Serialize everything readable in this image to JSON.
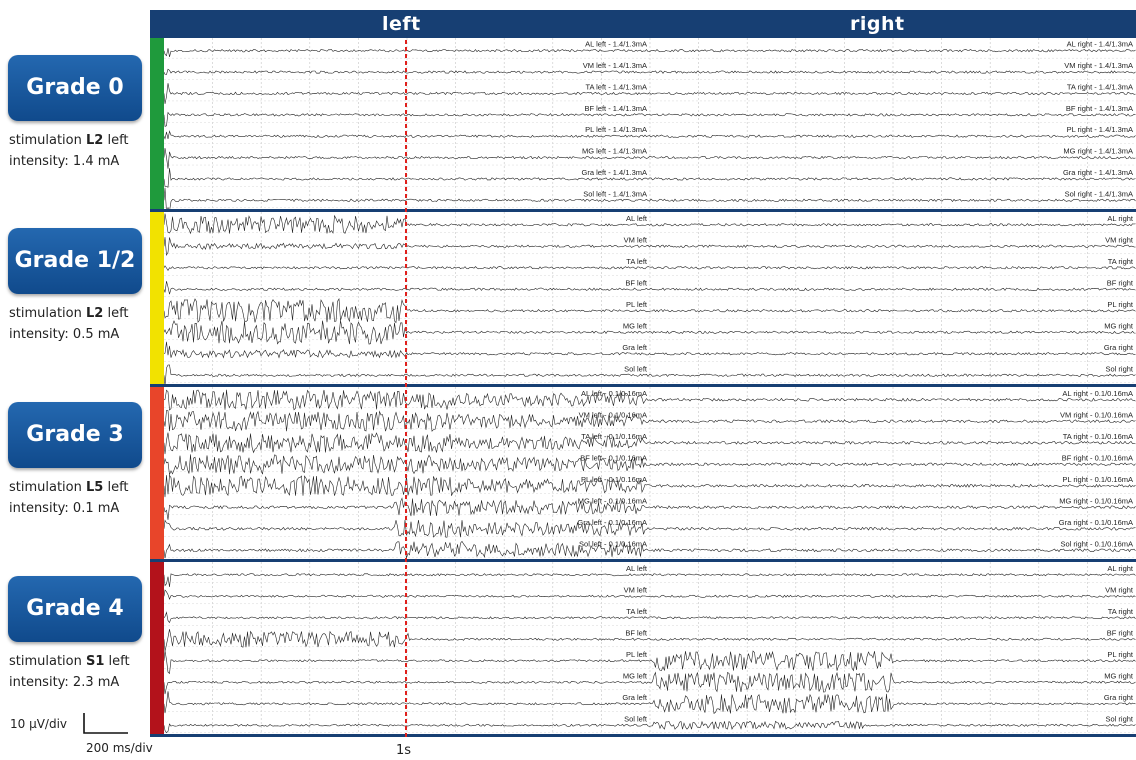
{
  "header": {
    "left": "left",
    "right": "right"
  },
  "panels": [
    {
      "grade": "Grade 0",
      "stim_prefix": "stimulation ",
      "segment": "L2",
      "side": " left",
      "intensity": "intensity: 1.4 mA",
      "color": "#1f9a3c",
      "labels_left": [
        "AL left - 1.4/1.3mA",
        "VM left - 1.4/1.3mA",
        "TA left - 1.4/1.3mA",
        "BF left - 1.4/1.3mA",
        "PL left - 1.4/1.3mA",
        "MG left - 1.4/1.3mA",
        "Gra left - 1.4/1.3mA",
        "Sol left - 1.4/1.3mA"
      ],
      "labels_right": [
        "AL right - 1.4/1.3mA",
        "VM right - 1.4/1.3mA",
        "TA right - 1.4/1.3mA",
        "BF right - 1.4/1.3mA",
        "PL right - 1.4/1.3mA",
        "MG right - 1.4/1.3mA",
        "Gra right - 1.4/1.3mA",
        "Sol right - 1.4/1.3mA"
      ]
    },
    {
      "grade": "Grade 1/2",
      "stim_prefix": "stimulation ",
      "segment": "L2",
      "side": " left",
      "intensity": "intensity: 0.5  mA",
      "color": "#f2e200",
      "labels_left": [
        "AL left",
        "VM left",
        "TA left",
        "BF left",
        "PL left",
        "MG left",
        "Gra left",
        "Sol left"
      ],
      "labels_right": [
        "AL right",
        "VM right",
        "TA right",
        "BF right",
        "PL right",
        "MG right",
        "Gra right",
        "Sol right"
      ]
    },
    {
      "grade": "Grade 3",
      "stim_prefix": "stimulation ",
      "segment": "L5",
      "side": " left",
      "intensity": "intensity: 0.1  mA",
      "color": "#e8452a",
      "labels_left": [
        "AL left - 0.1/0.16mA",
        "VM left - 0.1/0.16mA",
        "TA left - 0.1/0.16mA",
        "BF left - 0.1/0.16mA",
        "PL left - 0.1/0.16mA",
        "MG left - 0.1/0.16mA",
        "Gra left - 0.1/0.16mA",
        "Sol left - 0.1/0.16mA"
      ],
      "labels_right": [
        "AL right - 0.1/0.16mA",
        "VM right - 0.1/0.16mA",
        "TA right - 0.1/0.16mA",
        "BF right - 0.1/0.16mA",
        "PL right - 0.1/0.16mA",
        "MG right - 0.1/0.16mA",
        "Gra right - 0.1/0.16mA",
        "Sol right - 0.1/0.16mA"
      ]
    },
    {
      "grade": "Grade 4",
      "stim_prefix": "stimulation ",
      "segment": "S1",
      "side": " left",
      "intensity": "intensity: 2.3  mA",
      "color": "#b3121b",
      "labels_left": [
        "AL left",
        "VM left",
        "TA left",
        "BF left",
        "PL left",
        "MG left",
        "Gra left",
        "Sol left"
      ],
      "labels_right": [
        "AL right",
        "VM right",
        "TA right",
        "BF right",
        "PL right",
        "MG right",
        "Gra right",
        "Sol right"
      ]
    }
  ],
  "scale": {
    "voltage": "10 µV/div",
    "time": "200 ms/div"
  },
  "marker": {
    "label": "1s",
    "color": "#e0201c"
  }
}
